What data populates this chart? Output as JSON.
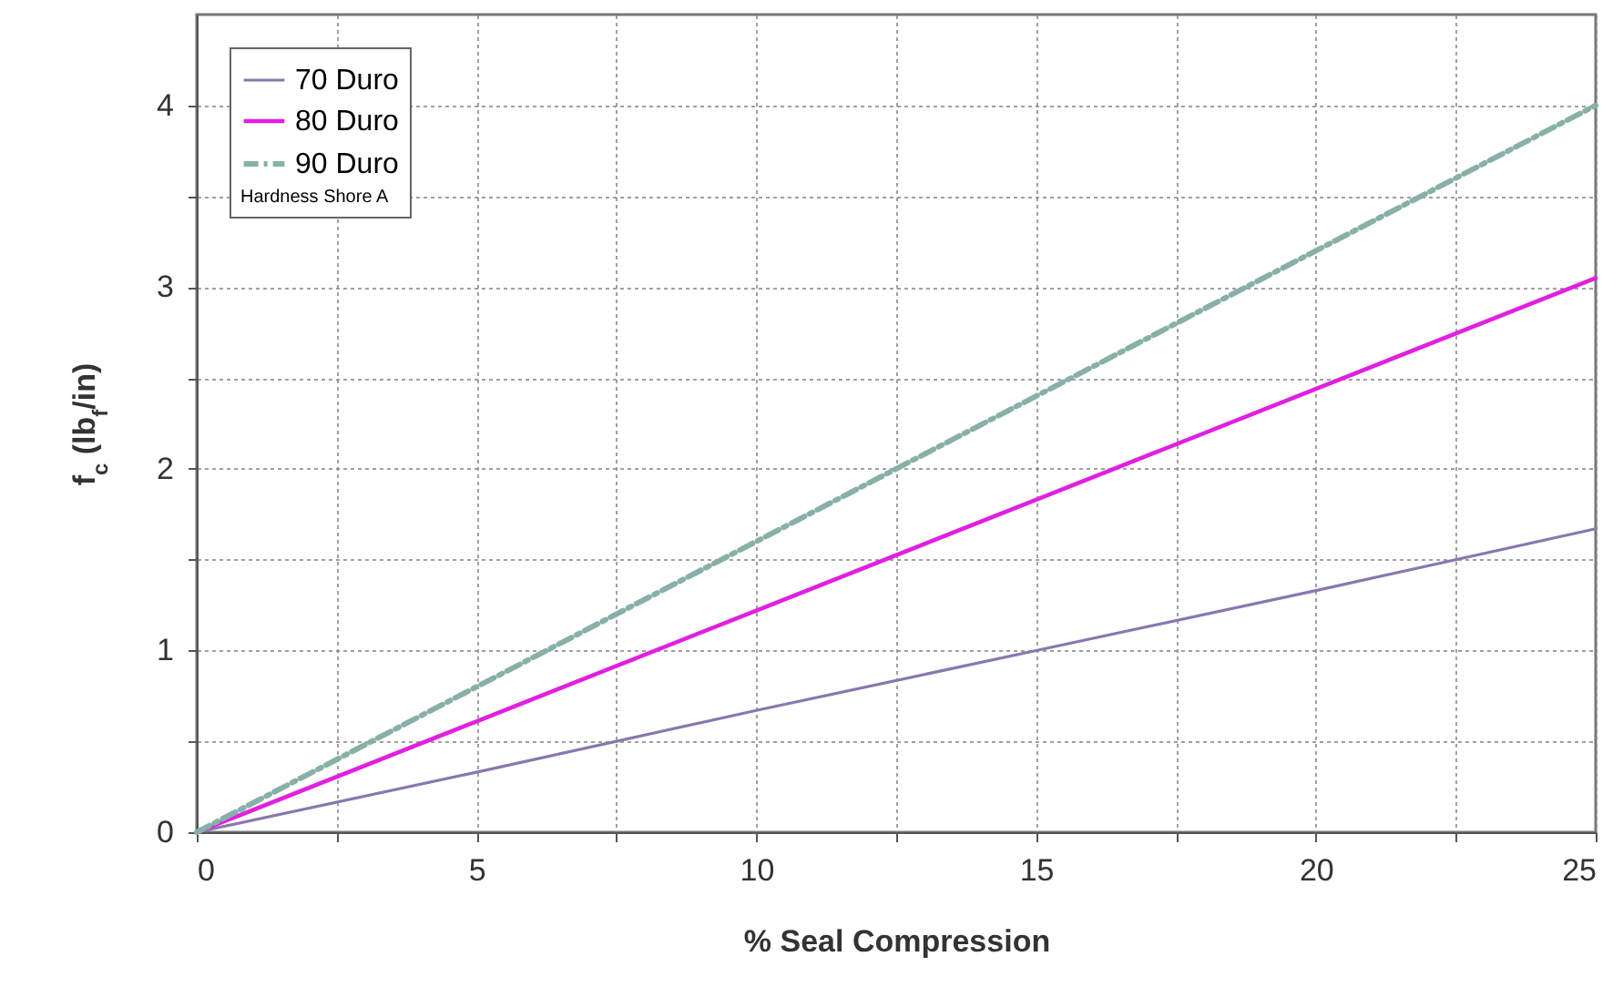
{
  "chart_data": {
    "type": "line",
    "xlabel": "% Seal Compression",
    "ylabel": "f$_{c}$ (lb$_{f}$/in)",
    "legend_title": "Hardness Shore A",
    "legend": "top left",
    "grid": true,
    "xlim": [
      0,
      25
    ],
    "xticks": [
      0,
      {
        "value": 2.5,
        "label": null
      },
      5,
      {
        "value": 7.5,
        "label": null
      },
      10,
      {
        "value": 12.5,
        "label": null
      },
      15,
      {
        "value": 17.5,
        "label": null
      },
      20,
      {
        "value": 22.5,
        "label": null
      },
      25
    ],
    "ylim": [
      0,
      4.5
    ],
    "yticks": [
      0,
      {
        "value": 0.5,
        "label": null
      },
      1,
      {
        "value": 1.5,
        "label": null
      },
      2,
      {
        "value": 2.5,
        "label": null
      },
      3,
      {
        "value": 3.5,
        "label": null
      },
      4
    ],
    "series": [
      {
        "name": "70 Duro",
        "color": "#8878b0",
        "line_style": "solid",
        "x": [
          0,
          5,
          10,
          15,
          20,
          25
        ],
        "values": [
          0,
          0.33,
          0.67,
          1.0,
          1.33,
          1.67
        ]
      },
      {
        "name": "80 Duro",
        "color": "#e020e0",
        "line_style": "solid",
        "x": [
          0,
          5,
          10,
          15,
          20,
          25
        ],
        "values": [
          0,
          0.61,
          1.22,
          1.83,
          2.44,
          3.05
        ]
      },
      {
        "name": "90 Duro",
        "color": "#88b0a8",
        "line_style": "dashed",
        "x": [
          0,
          5,
          10,
          15,
          20,
          25
        ],
        "values": [
          0,
          0.8,
          1.6,
          2.4,
          3.2,
          4.0
        ]
      }
    ]
  }
}
